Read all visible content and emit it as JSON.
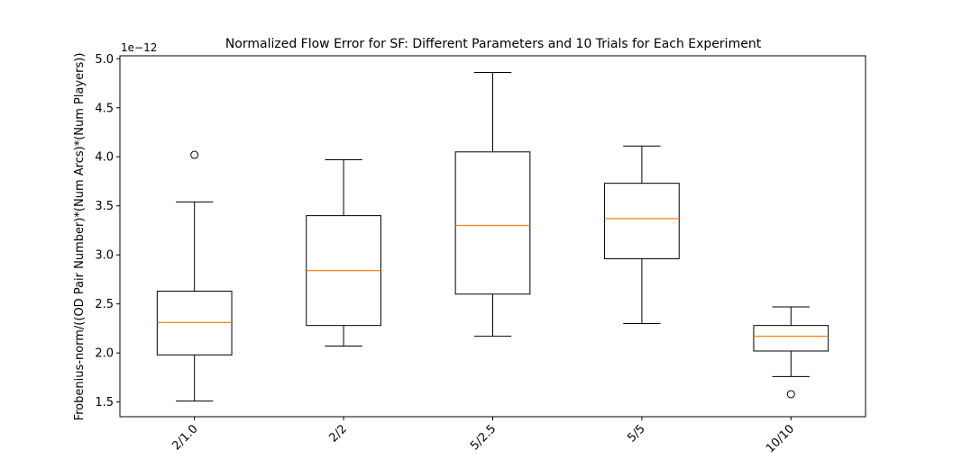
{
  "chart_data": {
    "type": "box",
    "title": "Normalized Flow Error for SF: Different Parameters and 10 Trials for Each Experiment",
    "xlabel": "",
    "ylabel": "Frobenius-norm/((OD Pair Number)*(Num Arcs)*(Num Players))",
    "y_offset_label": "1e−12",
    "ylim": [
      1.35,
      5.03
    ],
    "y_ticks": [
      1.5,
      2.0,
      2.5,
      3.0,
      3.5,
      4.0,
      4.5,
      5.0
    ],
    "y_tick_labels": [
      "1.5",
      "2.0",
      "2.5",
      "3.0",
      "3.5",
      "4.0",
      "4.5",
      "5.0"
    ],
    "x_tick_rotation": 45,
    "grid": false,
    "legend": "none",
    "categories": [
      "2/1.0",
      "2/2",
      "5/2.5",
      "5/5",
      "10/10"
    ],
    "boxes": [
      {
        "whisker_low": 1.51,
        "q1": 1.98,
        "median": 2.31,
        "q3": 2.63,
        "whisker_high": 3.54,
        "outliers": [
          4.02
        ]
      },
      {
        "whisker_low": 2.07,
        "q1": 2.28,
        "median": 2.84,
        "q3": 3.4,
        "whisker_high": 3.97,
        "outliers": []
      },
      {
        "whisker_low": 2.17,
        "q1": 2.6,
        "median": 3.3,
        "q3": 4.05,
        "whisker_high": 4.86,
        "outliers": []
      },
      {
        "whisker_low": 2.3,
        "q1": 2.96,
        "median": 3.37,
        "q3": 3.73,
        "whisker_high": 4.11,
        "outliers": []
      },
      {
        "whisker_low": 1.76,
        "q1": 2.02,
        "median": 2.17,
        "q3": 2.28,
        "whisker_high": 2.47,
        "outliers": [
          1.58
        ]
      }
    ],
    "colors": {
      "box": "#000000",
      "median": "#ff7f0e",
      "axes": "#000000",
      "background": "#ffffff"
    }
  }
}
